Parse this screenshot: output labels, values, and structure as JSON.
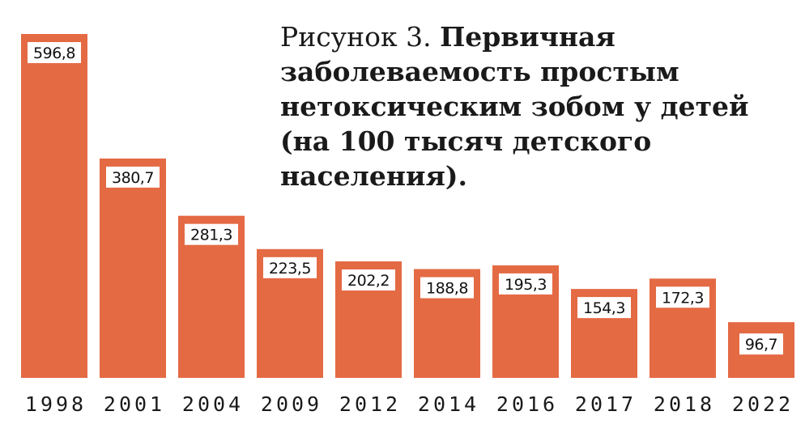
{
  "title": {
    "prefix": "Рисунок 3.",
    "main": "Первичная заболеваемость простым нетоксическим зобом у детей (на 100 тысяч детского населения)."
  },
  "colors": {
    "bar": "#e46a44",
    "label_box": "#ffffff",
    "text": "#1a1a1a"
  },
  "chart_data": {
    "type": "bar",
    "title": "Рисунок 3. Первичная заболеваемость простым нетоксическим зобом у детей (на 100 тысяч детского населения).",
    "categories": [
      "1998",
      "2001",
      "2004",
      "2009",
      "2012",
      "2014",
      "2016",
      "2017",
      "2018",
      "2022"
    ],
    "values": [
      596.8,
      380.7,
      281.3,
      223.5,
      202.2,
      188.8,
      195.3,
      154.3,
      172.3,
      96.7
    ],
    "value_labels": [
      "596,8",
      "380,7",
      "281,3",
      "223,5",
      "202,2",
      "188,8",
      "195,3",
      "154,3",
      "172,3",
      "96,7"
    ],
    "xlabel": "",
    "ylabel": "",
    "ylim": [
      0,
      596.8
    ],
    "grid": false,
    "legend": "none"
  }
}
